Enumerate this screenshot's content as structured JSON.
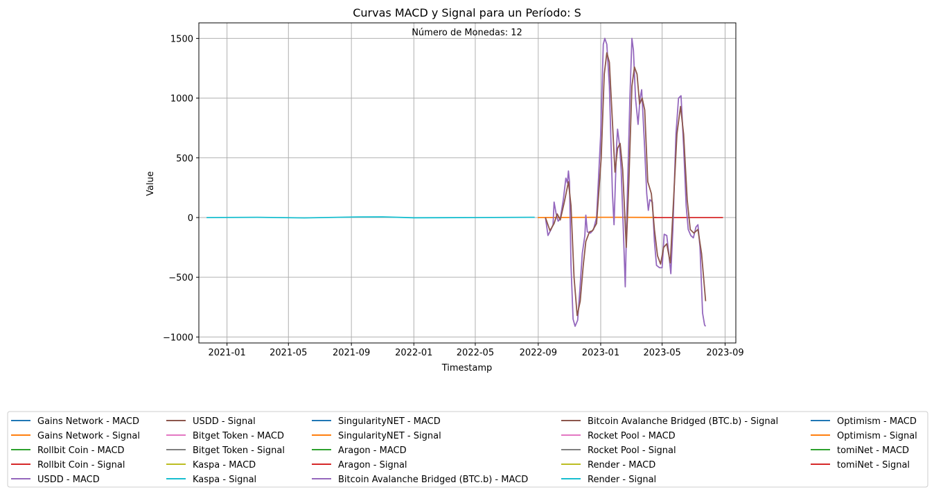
{
  "chart_data": {
    "type": "line",
    "title": "Curvas MACD y Signal para un Período: S",
    "annotation": "Número de Monedas: 12",
    "xlabel": "Timestamp",
    "ylabel": "Value",
    "xlim": [
      "2020-11-07",
      "2023-09-22"
    ],
    "ylim": [
      -1050,
      1630
    ],
    "xticks": [
      "2021-01",
      "2021-05",
      "2021-09",
      "2022-01",
      "2022-05",
      "2022-09",
      "2023-01",
      "2023-05",
      "2023-09"
    ],
    "yticks": [
      -1000,
      -500,
      0,
      500,
      1000,
      1500
    ],
    "grid": true,
    "legend_position": "bottom",
    "legend_columns": 5,
    "legend": [
      {
        "name": "Gains Network - MACD",
        "color": "#1f77b4"
      },
      {
        "name": "Gains Network - Signal",
        "color": "#ff7f0e"
      },
      {
        "name": "Rollbit Coin - MACD",
        "color": "#2ca02c"
      },
      {
        "name": "Rollbit Coin - Signal",
        "color": "#d62728"
      },
      {
        "name": "USDD - MACD",
        "color": "#9467bd"
      },
      {
        "name": "USDD - Signal",
        "color": "#8c564b"
      },
      {
        "name": "Bitget Token - MACD",
        "color": "#e377c2"
      },
      {
        "name": "Bitget Token - Signal",
        "color": "#7f7f7f"
      },
      {
        "name": "Kaspa - MACD",
        "color": "#bcbd22"
      },
      {
        "name": "Kaspa - Signal",
        "color": "#17becf"
      },
      {
        "name": "SingularityNET - MACD",
        "color": "#1f77b4"
      },
      {
        "name": "SingularityNET - Signal",
        "color": "#ff7f0e"
      },
      {
        "name": "Aragon - MACD",
        "color": "#2ca02c"
      },
      {
        "name": "Aragon - Signal",
        "color": "#d62728"
      },
      {
        "name": "Bitcoin Avalanche Bridged (BTC.b) - MACD",
        "color": "#9467bd"
      },
      {
        "name": "Bitcoin Avalanche Bridged (BTC.b) - Signal",
        "color": "#8c564b"
      },
      {
        "name": "Rocket Pool - MACD",
        "color": "#e377c2"
      },
      {
        "name": "Rocket Pool - Signal",
        "color": "#7f7f7f"
      },
      {
        "name": "Render - MACD",
        "color": "#bcbd22"
      },
      {
        "name": "Render - Signal",
        "color": "#17becf"
      },
      {
        "name": "Optimism - MACD",
        "color": "#1f77b4"
      },
      {
        "name": "Optimism - Signal",
        "color": "#ff7f0e"
      },
      {
        "name": "tomiNet - MACD",
        "color": "#2ca02c"
      },
      {
        "name": "tomiNet - Signal",
        "color": "#d62728"
      }
    ],
    "series": [
      {
        "legend_index": 9,
        "color": "#17becf",
        "points": [
          [
            "2020-11-22",
            0
          ],
          [
            "2021-03-01",
            2
          ],
          [
            "2021-06-01",
            -3
          ],
          [
            "2021-09-15",
            5
          ],
          [
            "2021-11-01",
            6
          ],
          [
            "2022-01-01",
            -2
          ],
          [
            "2022-05-01",
            0
          ],
          [
            "2022-08-25",
            2
          ]
        ]
      },
      {
        "legend_index": 1,
        "color": "#ff7f0e",
        "points": [
          [
            "2022-08-31",
            0
          ],
          [
            "2022-12-31",
            2
          ],
          [
            "2023-04-20",
            1
          ]
        ]
      },
      {
        "legend_index": 3,
        "color": "#d62728",
        "points": [
          [
            "2023-04-15",
            0
          ],
          [
            "2023-06-01",
            0
          ],
          [
            "2023-08-28",
            0
          ]
        ]
      },
      {
        "legend_index": 14,
        "color": "#9467bd",
        "points": [
          [
            "2022-09-15",
            0
          ],
          [
            "2022-09-20",
            -150
          ],
          [
            "2022-09-26",
            -100
          ],
          [
            "2022-09-30",
            -60
          ],
          [
            "2022-10-02",
            130
          ],
          [
            "2022-10-06",
            30
          ],
          [
            "2022-10-10",
            -30
          ],
          [
            "2022-10-14",
            -10
          ],
          [
            "2022-10-20",
            150
          ],
          [
            "2022-10-25",
            330
          ],
          [
            "2022-10-28",
            290
          ],
          [
            "2022-10-30",
            390
          ],
          [
            "2022-11-01",
            300
          ],
          [
            "2022-11-04",
            -400
          ],
          [
            "2022-11-08",
            -850
          ],
          [
            "2022-11-12",
            -910
          ],
          [
            "2022-11-17",
            -860
          ],
          [
            "2022-11-21",
            -620
          ],
          [
            "2022-11-26",
            -300
          ],
          [
            "2022-12-01",
            -150
          ],
          [
            "2022-12-03",
            20
          ],
          [
            "2022-12-06",
            -120
          ],
          [
            "2022-12-12",
            -130
          ],
          [
            "2022-12-18",
            -100
          ],
          [
            "2022-12-24",
            0
          ],
          [
            "2023-01-01",
            700
          ],
          [
            "2023-01-06",
            1450
          ],
          [
            "2023-01-09",
            1500
          ],
          [
            "2023-01-13",
            1450
          ],
          [
            "2023-01-18",
            1100
          ],
          [
            "2023-01-24",
            200
          ],
          [
            "2023-01-27",
            -60
          ],
          [
            "2023-02-01",
            600
          ],
          [
            "2023-02-03",
            740
          ],
          [
            "2023-02-07",
            600
          ],
          [
            "2023-02-10",
            400
          ],
          [
            "2023-02-15",
            -200
          ],
          [
            "2023-02-18",
            -580
          ],
          [
            "2023-02-21",
            0
          ],
          [
            "2023-02-27",
            1000
          ],
          [
            "2023-03-03",
            1500
          ],
          [
            "2023-03-06",
            1400
          ],
          [
            "2023-03-10",
            1000
          ],
          [
            "2023-03-15",
            780
          ],
          [
            "2023-03-19",
            1000
          ],
          [
            "2023-03-22",
            1070
          ],
          [
            "2023-03-27",
            650
          ],
          [
            "2023-04-01",
            200
          ],
          [
            "2023-04-04",
            60
          ],
          [
            "2023-04-07",
            150
          ],
          [
            "2023-04-12",
            130
          ],
          [
            "2023-04-16",
            -200
          ],
          [
            "2023-04-20",
            -400
          ],
          [
            "2023-04-26",
            -420
          ],
          [
            "2023-05-01",
            -420
          ],
          [
            "2023-05-05",
            -140
          ],
          [
            "2023-05-10",
            -150
          ],
          [
            "2023-05-14",
            -300
          ],
          [
            "2023-05-18",
            -470
          ],
          [
            "2023-05-22",
            -100
          ],
          [
            "2023-05-28",
            700
          ],
          [
            "2023-06-02",
            1000
          ],
          [
            "2023-06-07",
            1020
          ],
          [
            "2023-06-12",
            600
          ],
          [
            "2023-06-17",
            100
          ],
          [
            "2023-06-21",
            -100
          ],
          [
            "2023-06-26",
            -150
          ],
          [
            "2023-07-01",
            -170
          ],
          [
            "2023-07-06",
            -80
          ],
          [
            "2023-07-10",
            -60
          ],
          [
            "2023-07-14",
            -250
          ],
          [
            "2023-07-19",
            -800
          ],
          [
            "2023-07-23",
            -900
          ],
          [
            "2023-07-25",
            -910
          ]
        ]
      },
      {
        "legend_index": 15,
        "color": "#8c564b",
        "points": [
          [
            "2022-09-15",
            0
          ],
          [
            "2022-09-24",
            -110
          ],
          [
            "2022-10-02",
            -50
          ],
          [
            "2022-10-08",
            30
          ],
          [
            "2022-10-14",
            -20
          ],
          [
            "2022-10-22",
            130
          ],
          [
            "2022-10-30",
            300
          ],
          [
            "2022-11-04",
            100
          ],
          [
            "2022-11-10",
            -500
          ],
          [
            "2022-11-16",
            -820
          ],
          [
            "2022-11-22",
            -700
          ],
          [
            "2022-11-28",
            -400
          ],
          [
            "2022-12-03",
            -200
          ],
          [
            "2022-12-10",
            -120
          ],
          [
            "2022-12-16",
            -110
          ],
          [
            "2022-12-24",
            -50
          ],
          [
            "2023-01-02",
            500
          ],
          [
            "2023-01-08",
            1200
          ],
          [
            "2023-01-13",
            1380
          ],
          [
            "2023-01-18",
            1300
          ],
          [
            "2023-01-24",
            800
          ],
          [
            "2023-01-29",
            380
          ],
          [
            "2023-02-03",
            580
          ],
          [
            "2023-02-08",
            620
          ],
          [
            "2023-02-13",
            400
          ],
          [
            "2023-02-20",
            -250
          ],
          [
            "2023-02-25",
            300
          ],
          [
            "2023-03-03",
            1100
          ],
          [
            "2023-03-08",
            1260
          ],
          [
            "2023-03-13",
            1200
          ],
          [
            "2023-03-18",
            950
          ],
          [
            "2023-03-23",
            1000
          ],
          [
            "2023-03-28",
            900
          ],
          [
            "2023-04-03",
            300
          ],
          [
            "2023-04-10",
            200
          ],
          [
            "2023-04-16",
            -100
          ],
          [
            "2023-04-22",
            -320
          ],
          [
            "2023-04-28",
            -390
          ],
          [
            "2023-05-04",
            -250
          ],
          [
            "2023-05-10",
            -220
          ],
          [
            "2023-05-17",
            -380
          ],
          [
            "2023-05-24",
            200
          ],
          [
            "2023-05-30",
            700
          ],
          [
            "2023-06-06",
            930
          ],
          [
            "2023-06-12",
            700
          ],
          [
            "2023-06-19",
            150
          ],
          [
            "2023-06-25",
            -100
          ],
          [
            "2023-07-02",
            -130
          ],
          [
            "2023-07-10",
            -100
          ],
          [
            "2023-07-17",
            -300
          ],
          [
            "2023-07-25",
            -700
          ]
        ]
      }
    ]
  }
}
